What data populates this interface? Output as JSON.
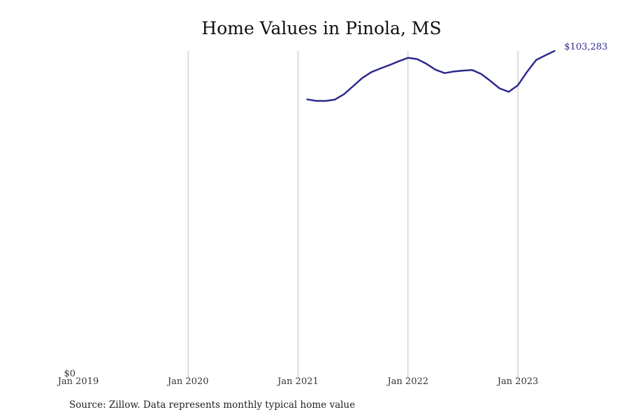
{
  "chart_data": {
    "type": "line",
    "title": "Home Values in Pinola, MS",
    "xlabel": "",
    "ylabel": "",
    "x_ticks": [
      "Jan 2019",
      "Jan 2020",
      "Jan 2021",
      "Jan 2022",
      "Jan 2023"
    ],
    "y_ticks": [
      "$0"
    ],
    "ylim": [
      0,
      103283
    ],
    "grid": "vertical",
    "line_color": "#2e2a8f",
    "end_label": "$103,283",
    "series": [
      {
        "x": [
          "2021-02",
          "2021-03",
          "2021-04",
          "2021-05",
          "2021-06",
          "2021-07",
          "2021-08",
          "2021-09",
          "2021-10",
          "2021-11",
          "2021-12",
          "2022-01",
          "2022-02",
          "2022-03",
          "2022-04",
          "2022-05",
          "2022-06",
          "2022-07",
          "2022-08",
          "2022-09",
          "2022-10",
          "2022-11",
          "2022-12",
          "2023-01",
          "2023-02",
          "2023-03",
          "2023-04",
          "2023-05"
        ],
        "values": [
          87800,
          87300,
          87300,
          87700,
          89400,
          92000,
          94600,
          96500,
          97700,
          98800,
          100000,
          101100,
          100700,
          99200,
          97300,
          96200,
          96700,
          97000,
          97200,
          95900,
          93700,
          91300,
          90200,
          92300,
          96600,
          100400,
          101900,
          103283
        ]
      }
    ]
  },
  "source": "Source: Zillow. Data represents monthly typical home value"
}
